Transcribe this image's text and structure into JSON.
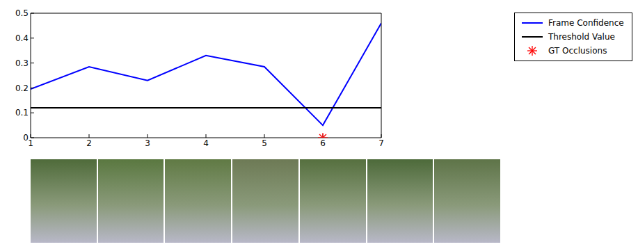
{
  "chart_data": {
    "type": "line",
    "x": [
      1,
      2,
      3,
      4,
      5,
      6,
      7
    ],
    "xlim": [
      1,
      7
    ],
    "xticks": [
      1,
      2,
      3,
      4,
      5,
      6,
      7
    ],
    "ylim": [
      0,
      0.5
    ],
    "yticks": [
      0,
      0.1,
      0.2,
      0.3,
      0.4,
      0.5
    ],
    "grid": false,
    "legend": "upper right",
    "series": [
      {
        "name": "Frame Confidence",
        "type": "line",
        "color": "#0000ff",
        "marker": "none",
        "line_style": "solid",
        "values": [
          0.195,
          0.285,
          0.23,
          0.33,
          0.285,
          0.05,
          0.46
        ]
      },
      {
        "name": "Threshold Value",
        "type": "line",
        "color": "#000000",
        "marker": "none",
        "line_style": "solid",
        "values": [
          0.12,
          0.12,
          0.12,
          0.12,
          0.12,
          0.12,
          0.12
        ]
      },
      {
        "name": "GT Occlusions",
        "type": "scatter",
        "color": "#ff0000",
        "marker": "asterisk",
        "values": [
          null,
          null,
          null,
          null,
          null,
          0,
          null
        ]
      }
    ]
  }
}
